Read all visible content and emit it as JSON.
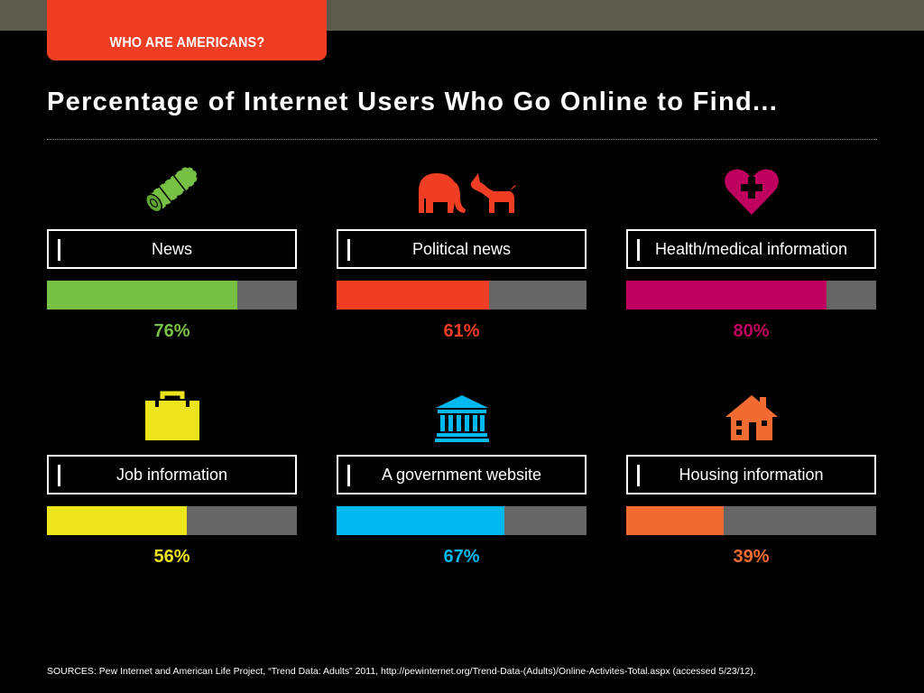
{
  "header": {
    "tab_label": "WHO ARE AMERICANS?",
    "title": "Percentage of Internet Users Who Go Online to Find..."
  },
  "chart_data": {
    "type": "bar",
    "unit": "%",
    "max": 100,
    "categories": [
      "News",
      "Political news",
      "Health/medical information",
      "Job information",
      "A government website",
      "Housing information"
    ],
    "values": [
      76,
      61,
      80,
      56,
      67,
      39
    ],
    "items": [
      {
        "label": "News",
        "value": 76,
        "display": "76%",
        "color": "#76c043",
        "icon": "newspaper-icon"
      },
      {
        "label": "Political news",
        "value": 61,
        "display": "61%",
        "color": "#ef3e23",
        "icon": "elephant-donkey-icon"
      },
      {
        "label": "Health/medical information",
        "value": 80,
        "display": "80%",
        "color": "#c0005e",
        "icon": "heart-cross-icon"
      },
      {
        "label": "Job information",
        "value": 56,
        "display": "56%",
        "color": "#ede51b",
        "icon": "briefcase-icon"
      },
      {
        "label": "A government website",
        "value": 67,
        "display": "67%",
        "color": "#00b9f1",
        "icon": "government-building-icon"
      },
      {
        "label": "Housing information",
        "value": 39,
        "display": "39%",
        "color": "#f26b31",
        "icon": "house-icon"
      }
    ],
    "track_color": "#666666"
  },
  "footer": {
    "source": "SOURCES: Pew Internet and American Life Project, “Trend Data: Adults” 2011,  http://pewinternet.org/Trend-Data-(Adults)/Online-Activites-Total.aspx (accessed 5/23/12)."
  }
}
